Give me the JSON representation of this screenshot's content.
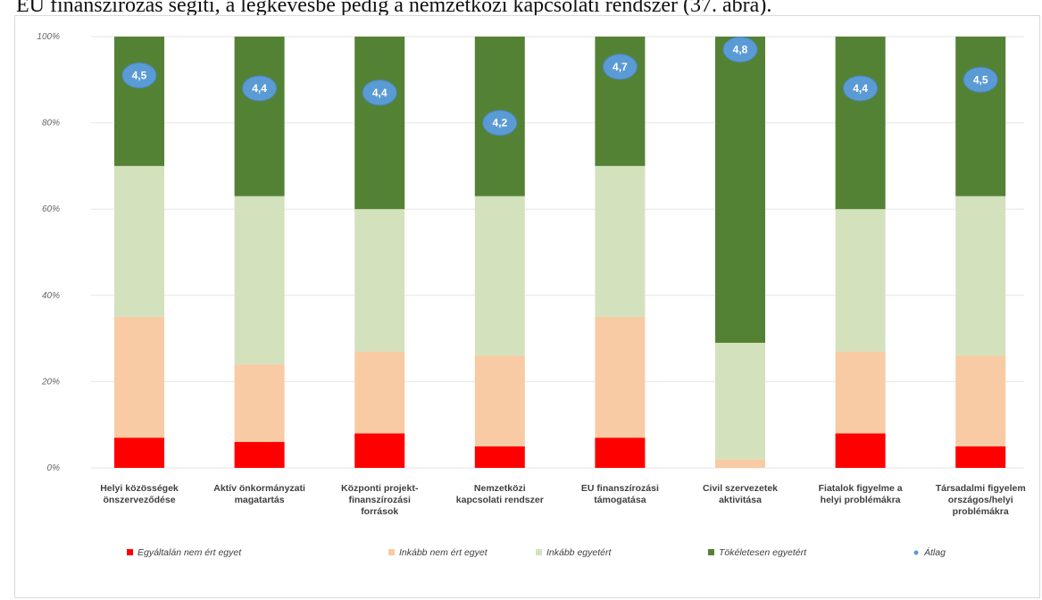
{
  "caption": "EU finanszírozás segíti, a legkevésbé pedig a nemzetközi kapcsolati rendszer (37. ábra).",
  "chart_data": {
    "type": "bar",
    "stacked": true,
    "percent": true,
    "ylim": [
      0,
      100
    ],
    "yticks": [
      "0%",
      "20%",
      "40%",
      "60%",
      "80%",
      "100%"
    ],
    "grid": true,
    "legend_position": "bottom",
    "categories": [
      [
        "Helyi közösségek",
        "önszerveződése"
      ],
      [
        "Aktív önkormányzati",
        "magatartás"
      ],
      [
        "Központi projekt-",
        "finanszírozási",
        "források"
      ],
      [
        "Nemzetközi",
        "kapcsolati rendszer"
      ],
      [
        "EU finanszírozási",
        "támogatása"
      ],
      [
        "Civil szervezetek",
        "aktivitása"
      ],
      [
        "Fiatalok figyelme a",
        "helyi problémákra"
      ],
      [
        "Társadalmi figyelem",
        "országos/helyi",
        "problémákra"
      ]
    ],
    "series": [
      {
        "name": "Egyáltalán nem ért egyet",
        "color": "#ff0000",
        "values": [
          7,
          6,
          8,
          5,
          7,
          0,
          8,
          5
        ]
      },
      {
        "name": "Inkább nem ért egyet",
        "color": "#f8cba4",
        "values": [
          28,
          18,
          19,
          21,
          28,
          2,
          19,
          21
        ]
      },
      {
        "name": "Inkább egyetért",
        "color": "#d3e2bd",
        "values": [
          35,
          39,
          33,
          37,
          35,
          27,
          33,
          37
        ]
      },
      {
        "name": "Tökéletesen egyetért",
        "color": "#548235",
        "values": [
          30,
          37,
          40,
          37,
          30,
          71,
          40,
          37
        ]
      }
    ],
    "average": {
      "name": "Átlag",
      "color": "#5b9bd5",
      "labels": [
        "4,5",
        "4,4",
        "4,4",
        "4,2",
        "4,7",
        "4,8",
        "4,4",
        "4,5"
      ],
      "positions_pct": [
        91,
        88,
        87,
        80,
        93,
        97,
        88,
        90
      ]
    }
  }
}
